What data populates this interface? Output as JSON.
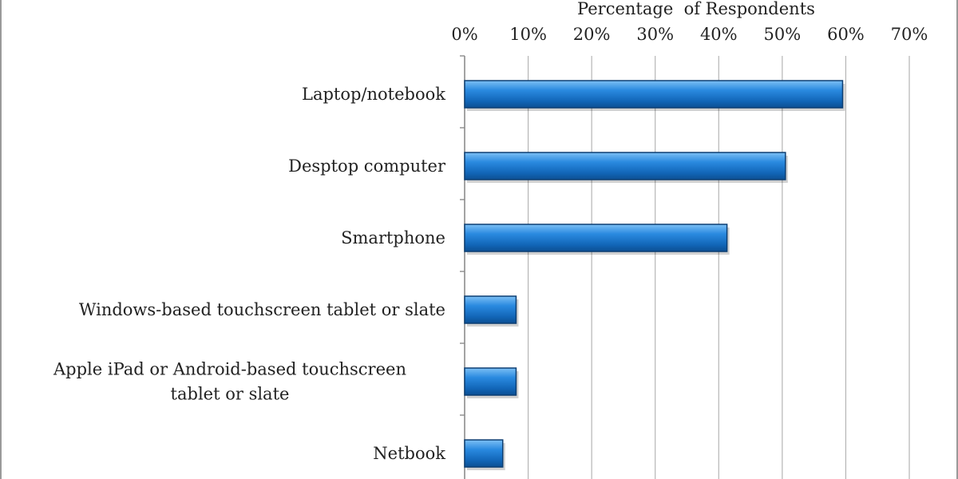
{
  "chart_data": {
    "type": "bar",
    "orientation": "horizontal",
    "xlabel": "Percentage  of Respondents",
    "ylabel": "",
    "xlim": [
      0,
      70
    ],
    "x_ticks": [
      0,
      10,
      20,
      30,
      40,
      50,
      60,
      70
    ],
    "x_tick_labels": [
      "0%",
      "10%",
      "20%",
      "30%",
      "40%",
      "50%",
      "60%",
      "70%"
    ],
    "axis_position": "top",
    "grid": true,
    "categories": [
      "Laptop/notebook",
      "Desptop computer",
      "Smartphone",
      "Windows-based touchscreen tablet or slate",
      "Apple iPad or Android-based touchscreen tablet or slate",
      "Netbook"
    ],
    "category_lines": [
      [
        "Laptop/notebook"
      ],
      [
        "Desptop computer"
      ],
      [
        "Smartphone"
      ],
      [
        "Windows-based touchscreen tablet or slate"
      ],
      [
        "Apple iPad or Android-based touchscreen",
        "tablet or slate"
      ],
      [
        "Netbook"
      ]
    ],
    "values": [
      59.5,
      50.5,
      41.3,
      8.1,
      8.1,
      6
    ],
    "bar_color": "#1a75c9",
    "bar_edge_color": "#0d3f73",
    "grid_color": "#b5b5b5",
    "frame_color": "#9a9a9a"
  }
}
